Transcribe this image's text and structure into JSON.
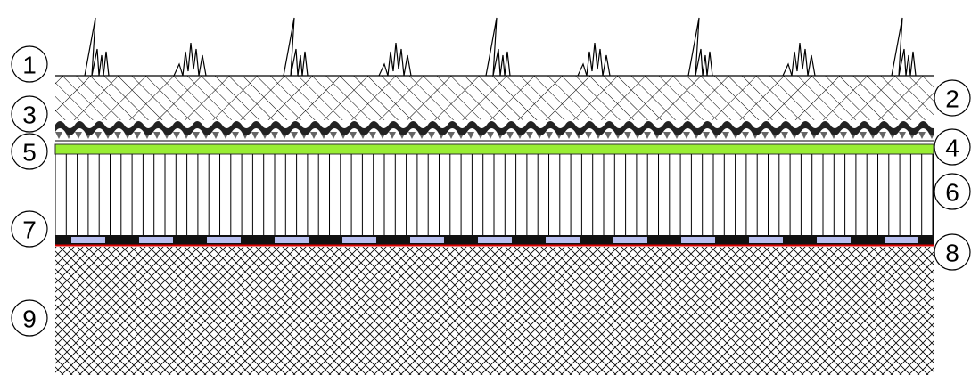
{
  "callouts": [
    "1",
    "2",
    "3",
    "4",
    "5",
    "6",
    "7",
    "8",
    "9"
  ]
}
